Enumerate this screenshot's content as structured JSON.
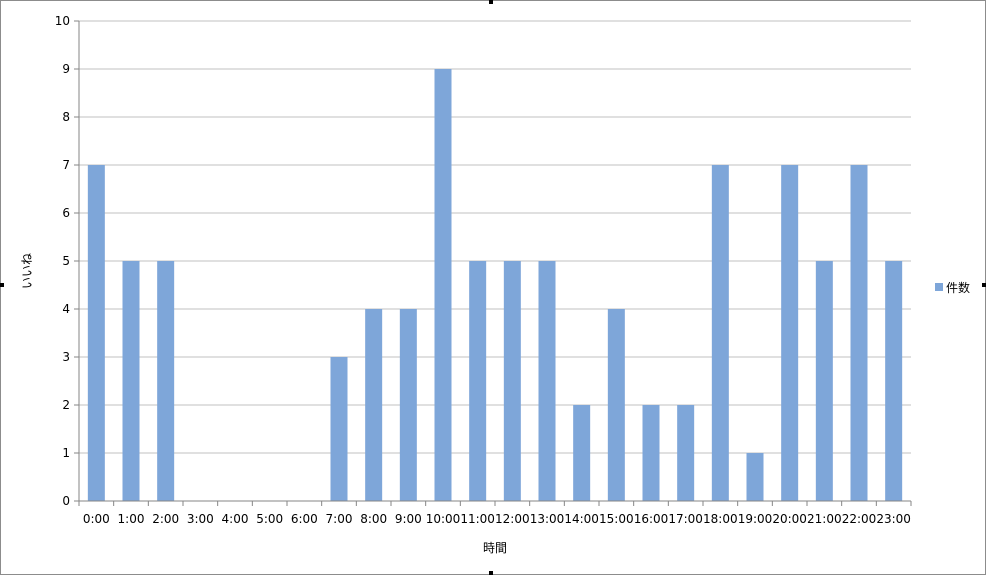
{
  "chart_data": {
    "type": "bar",
    "categories": [
      "0:00",
      "1:00",
      "2:00",
      "3:00",
      "4:00",
      "5:00",
      "6:00",
      "7:00",
      "8:00",
      "9:00",
      "10:00",
      "11:00",
      "12:00",
      "13:00",
      "14:00",
      "15:00",
      "16:00",
      "17:00",
      "18:00",
      "19:00",
      "20:00",
      "21:00",
      "22:00",
      "23:00"
    ],
    "series": [
      {
        "name": "件数",
        "values": [
          7,
          5,
          5,
          0,
          0,
          0,
          0,
          3,
          4,
          4,
          9,
          5,
          5,
          5,
          2,
          4,
          2,
          2,
          7,
          1,
          7,
          5,
          7,
          5
        ]
      }
    ],
    "xlabel": "時間",
    "ylabel": "いいね",
    "ylim": [
      0,
      10
    ],
    "yticks": [
      0,
      1,
      2,
      3,
      4,
      5,
      6,
      7,
      8,
      9,
      10
    ],
    "grid": true,
    "legend": "right",
    "colors": {
      "bar": "#7ea6d9",
      "grid": "#c0c0c0",
      "axis": "#868686"
    }
  }
}
